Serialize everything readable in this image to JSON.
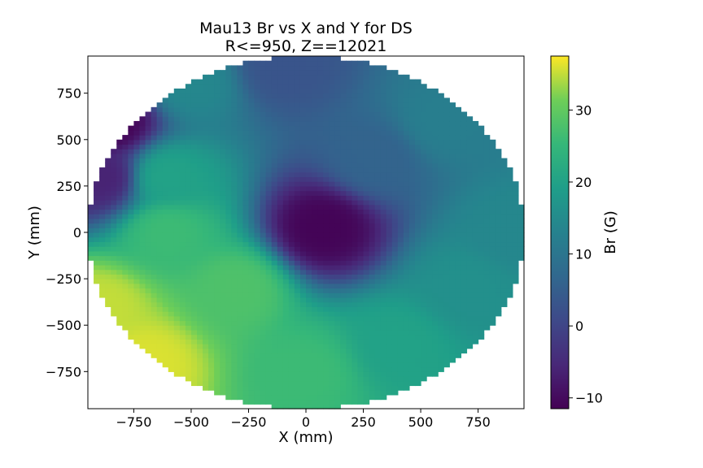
{
  "chart_data": {
    "type": "heatmap",
    "title": "Mau13 Br vs X and Y for DS",
    "subtitle": "R<=950, Z==12021",
    "xlabel": "X (mm)",
    "ylabel": "Y (mm)",
    "xlim": [
      -950,
      950
    ],
    "ylim": [
      -950,
      950
    ],
    "x_ticks": [
      -750,
      -500,
      -250,
      0,
      250,
      500,
      750
    ],
    "x_tick_labels": [
      "−750",
      "−500",
      "−250",
      "0",
      "250",
      "500",
      "750"
    ],
    "y_ticks": [
      -750,
      -500,
      -250,
      0,
      250,
      500,
      750
    ],
    "y_tick_labels": [
      "−750",
      "−500",
      "−250",
      "0",
      "250",
      "500",
      "750"
    ],
    "grid": false,
    "colormap": "viridis",
    "region": {
      "shape": "disk",
      "r_max": 950,
      "z": 12021
    },
    "cell_size_mm": 25,
    "colorbar": {
      "label": "Br (G)",
      "range": [
        -11.5,
        37.5
      ],
      "ticks": [
        -10,
        0,
        10,
        20,
        30
      ],
      "tick_labels": [
        "−10",
        "0",
        "10",
        "20",
        "30"
      ]
    },
    "field_samples": [
      {
        "x": 75,
        "y": 25,
        "br": -11
      },
      {
        "x": -850,
        "y": 600,
        "br": -11
      },
      {
        "x": -900,
        "y": 300,
        "br": -6
      },
      {
        "x": -100,
        "y": 900,
        "br": 3
      },
      {
        "x": -500,
        "y": 800,
        "br": 14
      },
      {
        "x": -600,
        "y": 300,
        "br": 20
      },
      {
        "x": -600,
        "y": 0,
        "br": 26
      },
      {
        "x": -900,
        "y": -400,
        "br": 35
      },
      {
        "x": -700,
        "y": -700,
        "br": 36
      },
      {
        "x": -300,
        "y": -300,
        "br": 28
      },
      {
        "x": 0,
        "y": -750,
        "br": 26
      },
      {
        "x": 400,
        "y": -600,
        "br": 20
      },
      {
        "x": 700,
        "y": -300,
        "br": 16
      },
      {
        "x": 900,
        "y": 0,
        "br": 14
      },
      {
        "x": 600,
        "y": 600,
        "br": 12
      },
      {
        "x": 300,
        "y": 400,
        "br": 6
      }
    ]
  }
}
